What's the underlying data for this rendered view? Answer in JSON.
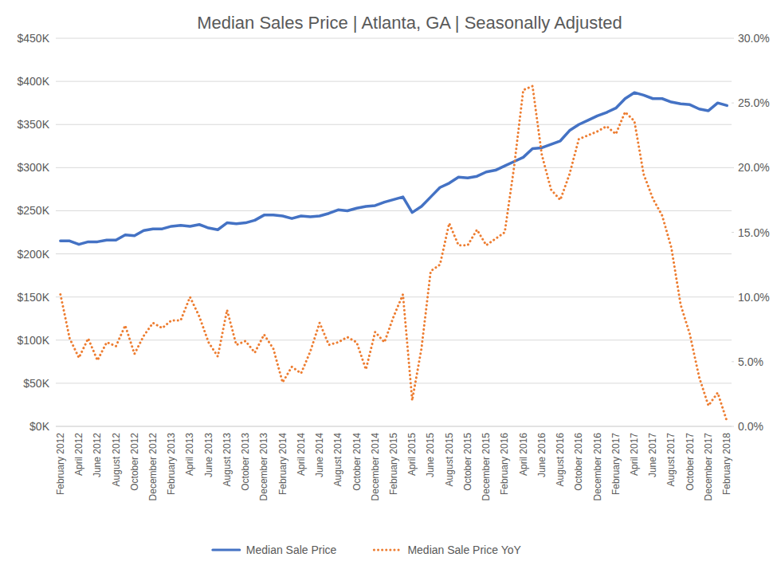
{
  "chart_data": {
    "type": "line",
    "title": "Median Sales Price | Atlanta, GA | Seasonally Adjusted",
    "categories": [
      "February 2012",
      null,
      "April 2012",
      null,
      "June 2012",
      null,
      "August 2012",
      null,
      "October 2012",
      null,
      "December 2012",
      null,
      "February 2013",
      null,
      "April 2013",
      null,
      "June 2013",
      null,
      "August 2013",
      null,
      "October 2013",
      null,
      "December 2013",
      null,
      "February 2014",
      null,
      "April 2014",
      null,
      "June 2014",
      null,
      "August 2014",
      null,
      "October 2014",
      null,
      "December 2014",
      null,
      "February 2015",
      null,
      "April 2015",
      null,
      "June 2015",
      null,
      "August 2015",
      null,
      "October 2015",
      null,
      "December 2015",
      null,
      "February 2016",
      null,
      "April 2016",
      null,
      "June 2016",
      null,
      "August 2016",
      null,
      "October 2016",
      null,
      "December 2016",
      null,
      "February 2017",
      null,
      "April 2017",
      null,
      "June 2017",
      null,
      "August 2017",
      null,
      "October 2017",
      null,
      "December 2017",
      null,
      "February 2018"
    ],
    "series": [
      {
        "name": "Median Sale Price",
        "color": "#4472c4",
        "line_style": "solid",
        "values": [
          215000,
          215000,
          211000,
          214000,
          214000,
          216000,
          216000,
          222000,
          221000,
          227000,
          229000,
          229000,
          232000,
          233000,
          232000,
          234000,
          230000,
          228000,
          236000,
          235000,
          236000,
          239000,
          245000,
          245000,
          244000,
          241000,
          244000,
          243000,
          244000,
          247000,
          251000,
          250000,
          253000,
          255000,
          256000,
          260000,
          263000,
          266000,
          248000,
          255000,
          266000,
          277000,
          282000,
          289000,
          288000,
          290000,
          295000,
          297000,
          302000,
          307000,
          312000,
          322000,
          323000,
          327000,
          331000,
          343000,
          350000,
          355000,
          360000,
          364000,
          369000,
          380000,
          387000,
          384000,
          380000,
          380000,
          376000,
          374000,
          373000,
          368000,
          366000,
          375000,
          372000
        ]
      },
      {
        "name": "Median Sale Price YoY",
        "color": "#ed7d31",
        "line_style": "dotted",
        "axis": "y2",
        "values": [
          10.2,
          6.8,
          5.3,
          6.8,
          5.1,
          6.5,
          6.2,
          7.8,
          5.6,
          7.0,
          8.0,
          7.6,
          8.2,
          8.2,
          10.0,
          8.5,
          6.5,
          5.4,
          9.0,
          6.3,
          6.6,
          5.7,
          7.1,
          6.0,
          3.4,
          4.6,
          4.1,
          5.8,
          8.0,
          6.3,
          6.5,
          6.9,
          6.5,
          4.4,
          7.3,
          6.5,
          8.5,
          10.2,
          2.0,
          6.0,
          12.0,
          12.5,
          15.7,
          14.0,
          14.0,
          15.2,
          14.0,
          14.5,
          15.0,
          20.0,
          26.0,
          26.3,
          21.0,
          18.3,
          17.5,
          19.5,
          22.2,
          22.5,
          22.8,
          23.2,
          22.6,
          24.3,
          23.6,
          19.5,
          17.6,
          16.3,
          13.8,
          9.4,
          7.1,
          3.8,
          1.6,
          2.6,
          0.4
        ]
      }
    ],
    "ylim": [
      0,
      450000
    ],
    "yticks": [
      {
        "value": 0,
        "label": "$0K"
      },
      {
        "value": 50000,
        "label": "$50K"
      },
      {
        "value": 100000,
        "label": "$100K"
      },
      {
        "value": 150000,
        "label": "$150K"
      },
      {
        "value": 200000,
        "label": "$200K"
      },
      {
        "value": 250000,
        "label": "$250K"
      },
      {
        "value": 300000,
        "label": "$300K"
      },
      {
        "value": 350000,
        "label": "$350K"
      },
      {
        "value": 400000,
        "label": "$400K"
      },
      {
        "value": 450000,
        "label": "$450K"
      }
    ],
    "y2lim": [
      0,
      30
    ],
    "y2ticks": [
      {
        "value": 0,
        "label": "0.0%"
      },
      {
        "value": 5,
        "label": "5.0%"
      },
      {
        "value": 10,
        "label": "10.0%"
      },
      {
        "value": 15,
        "label": "15.0%"
      },
      {
        "value": 20,
        "label": "20.0%"
      },
      {
        "value": 25,
        "label": "25.0%"
      },
      {
        "value": 30,
        "label": "30.0%"
      }
    ],
    "grid": true,
    "legend": "bottom"
  }
}
